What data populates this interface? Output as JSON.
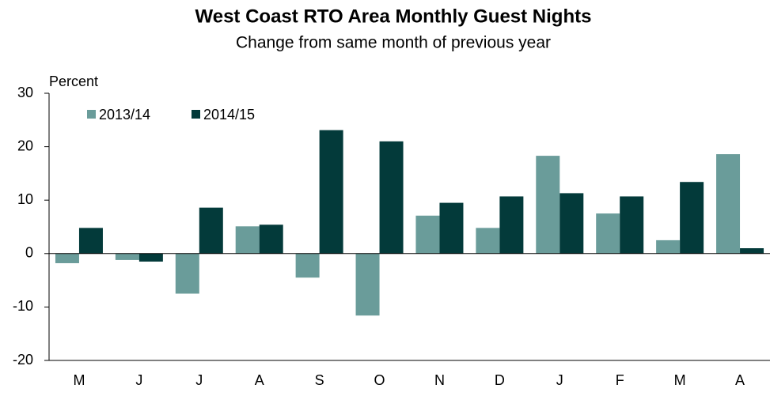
{
  "chart_data": {
    "type": "bar",
    "title": "West Coast RTO Area Monthly Guest Nights",
    "subtitle": "Change from same month of previous year",
    "y_label": "Percent",
    "categories": [
      "M",
      "J",
      "J",
      "A",
      "S",
      "O",
      "N",
      "D",
      "J",
      "F",
      "M",
      "A"
    ],
    "series": [
      {
        "name": "2013/14",
        "color": "#6a9c9a",
        "values": [
          -1.8,
          -1.2,
          -7.5,
          5.1,
          -4.5,
          -11.6,
          7.1,
          4.8,
          18.3,
          7.5,
          2.5,
          18.6
        ]
      },
      {
        "name": "2014/15",
        "color": "#033a3a",
        "values": [
          4.8,
          -1.5,
          8.6,
          5.4,
          23.1,
          21.0,
          9.5,
          10.7,
          11.3,
          10.7,
          13.4,
          1.0
        ]
      }
    ],
    "ylim": [
      -20,
      30
    ],
    "yticks": [
      -20,
      -10,
      0,
      10,
      20,
      30
    ],
    "grid": false,
    "legend": "upper left"
  }
}
